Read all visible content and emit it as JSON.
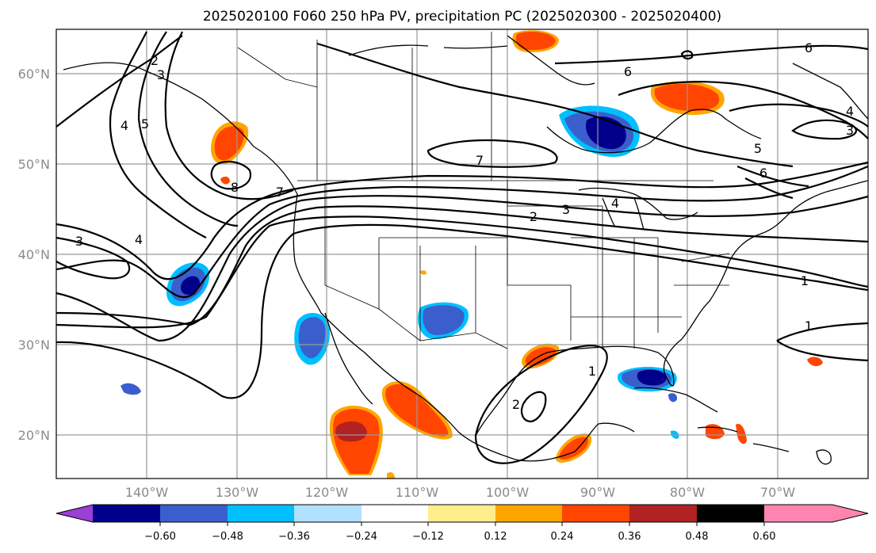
{
  "title": "2025020100 F060 250 hPa PV, precipitation PC (2025020300 - 2025020400)",
  "lat_labels": [
    "60°N",
    "50°N",
    "40°N",
    "30°N",
    "20°N"
  ],
  "lon_labels": [
    "140°W",
    "130°W",
    "120°W",
    "110°W",
    "100°W",
    "90°W",
    "80°W",
    "70°W"
  ],
  "pv_contour_labels": [
    "2",
    "3",
    "4",
    "5",
    "8",
    "7",
    "3",
    "4",
    "6",
    "7",
    "2",
    "3",
    "4",
    "6",
    "5",
    "6",
    "3",
    "4",
    "1",
    "1",
    "1",
    "2"
  ],
  "colorbar": {
    "ticks": [
      "−0.60",
      "−0.48",
      "−0.36",
      "−0.24",
      "−0.12",
      "0.12",
      "0.24",
      "0.36",
      "0.48",
      "0.60"
    ],
    "colors": [
      "#9b3fd6",
      "#00008b",
      "#3a5fcd",
      "#00bfff",
      "#b0e0ff",
      "#ffffff",
      "#ffec8b",
      "#ffa500",
      "#ff4500",
      "#b22222",
      "#ff85b0"
    ]
  }
}
